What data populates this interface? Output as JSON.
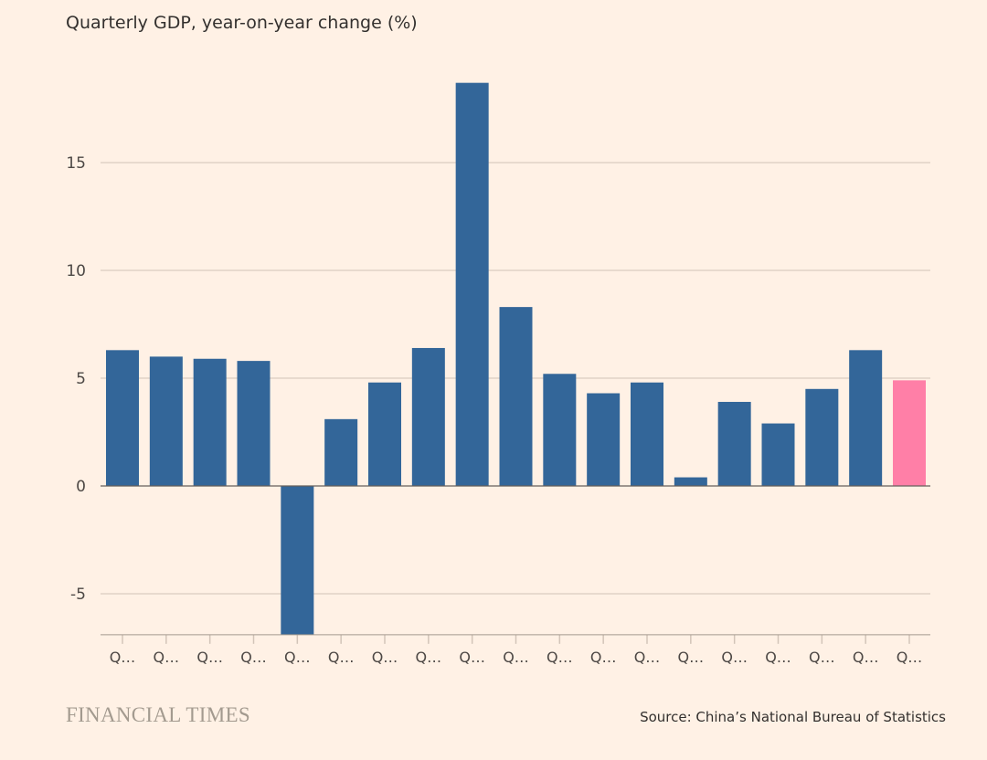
{
  "chart_data": {
    "type": "bar",
    "title": "Quarterly GDP, year-on-year change (%)",
    "categories": [
      "Q…",
      "Q…",
      "Q…",
      "Q…",
      "Q…",
      "Q…",
      "Q…",
      "Q…",
      "Q…",
      "Q…",
      "Q…",
      "Q…",
      "Q…",
      "Q…",
      "Q…",
      "Q…",
      "Q…",
      "Q…",
      "Q…"
    ],
    "values": [
      6.3,
      6.0,
      5.9,
      5.8,
      -6.9,
      3.1,
      4.8,
      6.4,
      18.7,
      8.3,
      5.2,
      4.3,
      4.8,
      0.4,
      3.9,
      2.9,
      4.5,
      6.3,
      4.9
    ],
    "highlight_index": 18,
    "yticks": [
      -5,
      0,
      5,
      10,
      15
    ],
    "ytick_labels": [
      "-5",
      "0",
      "5",
      "10",
      "15"
    ],
    "ylim": [
      -6.9,
      19
    ],
    "grid": true,
    "xlabel": "",
    "ylabel": "",
    "colors": {
      "bar": "#336699",
      "highlight": "#ff7fa7",
      "grid": "#d2c4b8",
      "axis": "#66605c"
    }
  },
  "footer": {
    "logo": "FINANCIAL TIMES",
    "source": "Source: China’s National Bureau of Statistics"
  }
}
